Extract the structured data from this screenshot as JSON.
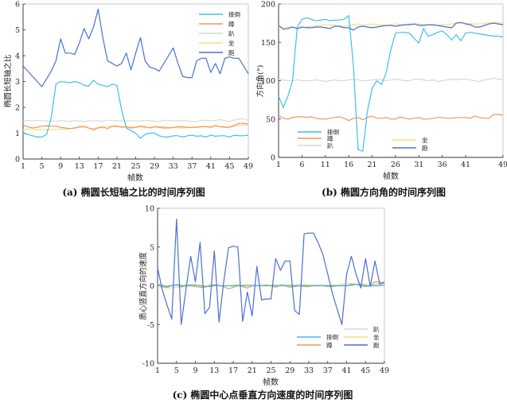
{
  "colors": {
    "摔倒": "#3cbff0",
    "蹲": "#f4955a",
    "趴": "#d9d9d9",
    "坐": "#f7df7c",
    "跑": "#4a70d4"
  },
  "chart_data": [
    {
      "type": "line",
      "caption": "(a) 椭圆长短轴之比的时间序列图",
      "xlabel": "帧数",
      "ylabel": "椭圆长短轴之比",
      "xlim": [
        1,
        49
      ],
      "ylim": [
        0,
        6
      ],
      "xticks": [
        1,
        5,
        9,
        13,
        17,
        21,
        25,
        29,
        33,
        37,
        41,
        45,
        49
      ],
      "yticks": [
        0,
        1,
        2,
        3,
        4,
        5,
        6
      ],
      "legend": "top-right",
      "series": [
        {
          "name": "摔倒",
          "values": [
            1.0,
            0.95,
            0.9,
            0.85,
            0.85,
            0.95,
            1.6,
            2.9,
            3.0,
            2.98,
            2.95,
            3.0,
            2.95,
            2.85,
            2.82,
            3.05,
            2.9,
            2.85,
            2.8,
            2.9,
            2.85,
            1.9,
            1.2,
            1.1,
            1.0,
            0.8,
            0.95,
            1.0,
            1.0,
            0.9,
            0.85,
            0.85,
            0.9,
            0.9,
            0.85,
            0.9,
            0.92,
            0.88,
            0.9,
            0.85,
            0.92,
            0.88,
            0.9,
            0.9,
            0.85,
            0.92,
            0.9,
            0.9,
            0.92
          ]
        },
        {
          "name": "蹲",
          "values": [
            1.3,
            1.25,
            1.2,
            1.22,
            1.27,
            1.28,
            1.27,
            1.27,
            1.22,
            1.2,
            1.18,
            1.2,
            1.25,
            1.27,
            1.2,
            1.13,
            1.2,
            1.25,
            1.17,
            1.27,
            1.28,
            1.22,
            1.25,
            1.2,
            1.22,
            1.28,
            1.25,
            1.2,
            1.25,
            1.22,
            1.2,
            1.2,
            1.22,
            1.25,
            1.25,
            1.22,
            1.22,
            1.22,
            1.25,
            1.25,
            1.22,
            1.3,
            1.25,
            1.22,
            1.22,
            1.3,
            1.38,
            1.38,
            1.35
          ]
        },
        {
          "name": "趴",
          "values": [
            1.45,
            1.5,
            1.48,
            1.5,
            1.48,
            1.47,
            1.47,
            1.46,
            1.48,
            1.47,
            1.46,
            1.48,
            1.47,
            1.46,
            1.48,
            1.47,
            1.48,
            1.46,
            1.5,
            1.5,
            1.48,
            1.47,
            1.47,
            1.48,
            1.47,
            1.48,
            1.5,
            1.48,
            1.46,
            1.45,
            1.5,
            1.5,
            1.48,
            1.47,
            1.5,
            1.47,
            1.45,
            1.46,
            1.5,
            1.5,
            1.47,
            1.5,
            1.52,
            1.48,
            1.45,
            1.5,
            1.55,
            1.55,
            1.5
          ]
        },
        {
          "name": "坐",
          "values": [
            1.12,
            1.15,
            1.15,
            1.12,
            1.15,
            1.13,
            1.13,
            1.15,
            1.16,
            1.15,
            1.18,
            1.2,
            1.22,
            1.22,
            1.2,
            1.18,
            1.22,
            1.2,
            1.25,
            1.27,
            1.25,
            1.27,
            1.25,
            1.25,
            1.23,
            1.23,
            1.2,
            1.22,
            1.25,
            1.25,
            1.25,
            1.22,
            1.22,
            1.2,
            1.2,
            1.22,
            1.22,
            1.25,
            1.25,
            1.25,
            1.27,
            1.27,
            1.25,
            1.27,
            1.27,
            1.27,
            1.3,
            1.33,
            1.3
          ]
        },
        {
          "name": "跑",
          "values": [
            3.6,
            3.4,
            3.2,
            3.0,
            2.8,
            3.1,
            3.4,
            3.8,
            4.65,
            4.1,
            4.1,
            4.05,
            4.5,
            5.05,
            4.65,
            5.1,
            5.8,
            4.7,
            3.8,
            3.7,
            3.6,
            3.7,
            4.1,
            3.45,
            4.1,
            4.7,
            3.8,
            3.55,
            3.5,
            3.4,
            3.7,
            4.0,
            4.3,
            3.7,
            3.2,
            3.15,
            3.15,
            3.8,
            3.9,
            3.9,
            3.35,
            3.7,
            3.3,
            3.9,
            3.95,
            3.9,
            3.9,
            3.6,
            3.3
          ]
        }
      ]
    },
    {
      "type": "line",
      "caption": "(b) 椭圆方向角的时间序列图",
      "xlabel": "帧数",
      "ylabel": "方向角(°)",
      "xlim": [
        1,
        49
      ],
      "ylim": [
        0,
        200
      ],
      "xticks": [
        1,
        6,
        11,
        16,
        21,
        26,
        31,
        36,
        41,
        49
      ],
      "yticks": [
        0,
        50,
        100,
        150,
        200
      ],
      "legend": "bottom-left",
      "series": [
        {
          "name": "摔倒",
          "values": [
            80,
            65,
            80,
            100,
            170,
            180,
            182,
            180,
            178,
            179,
            180,
            178,
            179,
            179,
            180,
            185,
            120,
            10,
            8,
            60,
            90,
            100,
            95,
            110,
            140,
            162,
            163,
            163,
            162,
            155,
            149,
            168,
            158,
            160,
            163,
            165,
            160,
            153,
            160,
            152,
            162,
            163,
            162,
            161,
            160,
            159,
            158,
            158,
            157
          ]
        },
        {
          "name": "蹲",
          "values": [
            55,
            51,
            50,
            52,
            53,
            53,
            52,
            53,
            51,
            50,
            50,
            51,
            52,
            53,
            51,
            48,
            51,
            52,
            49,
            52,
            54,
            51,
            51,
            52,
            50,
            50,
            53,
            51,
            50,
            51,
            52,
            50,
            50,
            51,
            52,
            52,
            51,
            51,
            52,
            52,
            52,
            51,
            54,
            52,
            51,
            51,
            56,
            56,
            55
          ]
        },
        {
          "name": "趴",
          "values": [
            102,
            101,
            100,
            100,
            101,
            100,
            100,
            100,
            101,
            100,
            99,
            100,
            101,
            100,
            100,
            101,
            102,
            101,
            100,
            100,
            101,
            102,
            101,
            100,
            101,
            102,
            101,
            100,
            100,
            102,
            102,
            101,
            100,
            101,
            99,
            100,
            101,
            102,
            101,
            102,
            102,
            101,
            100,
            99,
            101,
            102,
            103,
            102,
            101
          ]
        },
        {
          "name": "坐",
          "values": [
            170,
            169,
            170,
            170,
            168,
            169,
            170,
            171,
            171,
            172,
            173,
            173,
            172,
            171,
            171,
            172,
            173,
            174,
            172,
            173,
            174,
            173,
            173,
            172,
            173,
            174,
            173,
            173,
            174,
            174,
            174,
            173,
            173,
            172,
            172,
            173,
            173,
            174,
            175,
            175,
            175,
            174,
            174,
            174,
            175,
            175,
            176,
            176,
            175
          ]
        },
        {
          "name": "跑",
          "values": [
            172,
            167,
            168,
            170,
            168,
            170,
            169,
            169,
            170,
            170,
            169,
            168,
            171,
            171,
            169,
            169,
            166,
            170,
            171,
            170,
            169,
            170,
            171,
            172,
            172,
            171,
            172,
            173,
            173,
            174,
            172,
            172,
            173,
            173,
            172,
            171,
            170,
            169,
            175,
            176,
            174,
            173,
            170,
            170,
            172,
            174,
            175,
            174,
            173
          ]
        }
      ]
    },
    {
      "type": "line",
      "caption": "(c) 椭圆中心点垂直方向速度的时间序列图",
      "xlabel": "帧数",
      "ylabel": "质心竖直方向的速度",
      "xlim": [
        1,
        49
      ],
      "ylim": [
        -10,
        10
      ],
      "xticks": [
        1,
        5,
        9,
        13,
        17,
        21,
        25,
        29,
        33,
        37,
        41,
        45,
        49
      ],
      "yticks": [
        -10,
        -5,
        0,
        5,
        10
      ],
      "legend": "bottom-right",
      "series": [
        {
          "name": "摔倒",
          "values": [
            0.2,
            0,
            -0.1,
            0,
            0.1,
            0,
            0.05,
            0.1,
            0.1,
            0,
            -0.1,
            -0.1,
            0,
            0,
            0,
            0,
            0,
            0,
            0,
            0,
            0,
            0,
            0,
            0,
            0,
            0,
            0,
            0,
            0,
            0,
            0,
            0,
            0,
            0,
            0,
            0,
            0,
            0,
            0,
            0,
            0,
            0.1,
            0.2,
            0.1,
            0,
            0,
            0,
            0,
            0.1
          ]
        },
        {
          "name": "蹲",
          "values": [
            0.1,
            -0.1,
            -0.2,
            0,
            0.1,
            -0.1,
            0,
            0,
            -0.1,
            -0.2,
            -0.2,
            0,
            0.1,
            0,
            -0.1,
            -0.4,
            -0.2,
            0,
            -0.1,
            -0.3,
            0,
            0,
            0,
            0.1,
            0,
            -0.2,
            0.1,
            0,
            -0.2,
            -0.1,
            0,
            -0.1,
            -0.1,
            0,
            0,
            0,
            -0.1,
            -0.1,
            0,
            0,
            0,
            0.2,
            0.2,
            0,
            -0.1,
            0,
            0.5,
            0.5,
            0.3
          ]
        },
        {
          "name": "趴",
          "values": [
            0.2,
            0.1,
            0,
            0.1,
            0.2,
            0.1,
            0,
            0.1,
            0.1,
            0,
            0,
            0.1,
            0.2,
            0.1,
            0,
            0,
            0,
            0.1,
            0.1,
            0.2,
            0.2,
            0.1,
            0,
            0.1,
            0,
            0,
            0.1,
            0.2,
            0,
            0.1,
            0.2,
            0.1,
            0.1,
            0,
            0,
            0.1,
            0.1,
            0,
            0,
            0.1,
            0,
            0,
            0.2,
            0.3,
            0.2,
            0.1,
            0.1,
            0.2,
            0.1
          ]
        },
        {
          "name": "坐",
          "values": [
            -0.3,
            -0.2,
            -0.3,
            -0.3,
            -0.2,
            -0.2,
            -0.1,
            0,
            0,
            0.1,
            0,
            0.1,
            0.1,
            0,
            0,
            0,
            0.1,
            0.2,
            0.1,
            0.2,
            0.2,
            0,
            0.1,
            0,
            0.1,
            0.1,
            0,
            0.1,
            0.1,
            0.1,
            0,
            0.2,
            0.1,
            0.1,
            0.1,
            0.1,
            0,
            0.1,
            0.1,
            0.2,
            0.3,
            0.3,
            0.2,
            0.2,
            0.1,
            0.1,
            0.2,
            0.3,
            0.3
          ]
        },
        {
          "name": "跑",
          "values": [
            2.3,
            -0.5,
            -2.5,
            -4.3,
            8.6,
            -5,
            -0.5,
            3.8,
            0.5,
            5.6,
            -3.6,
            -2.8,
            4.5,
            -4.7,
            0.5,
            4.9,
            5.1,
            5.0,
            -4.6,
            -0.8,
            -3.9,
            2.5,
            -1.8,
            -1.7,
            -1.7,
            3.5,
            2.0,
            3.2,
            3.2,
            -3.2,
            -3.7,
            6.7,
            6.8,
            6.8,
            5.5,
            4.0,
            1.5,
            -1,
            -3,
            -5,
            1.5,
            3.8,
            1.5,
            -0.3,
            3.5,
            -0.1,
            3.2,
            0.2,
            0.5
          ]
        }
      ]
    }
  ]
}
